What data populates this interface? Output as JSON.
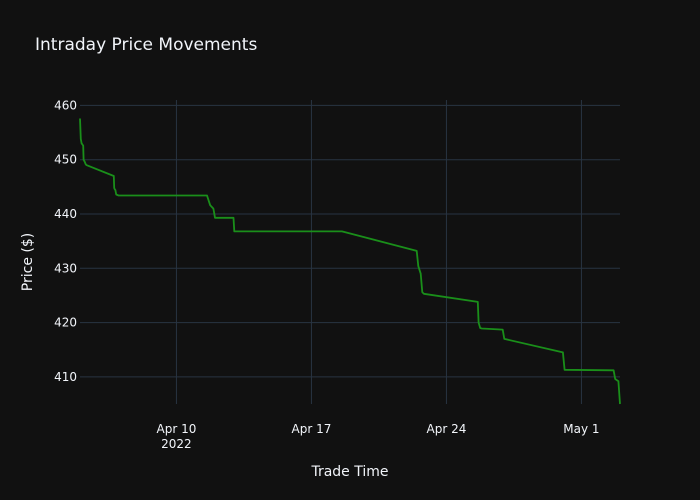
{
  "chart_data": {
    "type": "line",
    "title": "Intraday Price Movements",
    "xlabel": "Trade Time",
    "ylabel": "Price ($)",
    "xlim": [
      "2022-04-05T00:00",
      "2022-05-03T00:00"
    ],
    "ylim": [
      405,
      461
    ],
    "x_ticks": [
      {
        "date": "2022-04-10",
        "label": "Apr 10",
        "sublabel": "2022"
      },
      {
        "date": "2022-04-17",
        "label": "Apr 17",
        "sublabel": ""
      },
      {
        "date": "2022-04-24",
        "label": "Apr 24",
        "sublabel": ""
      },
      {
        "date": "2022-05-01",
        "label": "May 1",
        "sublabel": ""
      }
    ],
    "y_ticks": [
      410,
      420,
      430,
      440,
      450,
      460
    ],
    "grid": true,
    "line_color": "#1a8f1a",
    "series": [
      {
        "name": "",
        "x": [
          "2022-04-05T00:00",
          "2022-04-05T01:00",
          "2022-04-05T02:00",
          "2022-04-05T04:00",
          "2022-04-05T04:30",
          "2022-04-05T06:00",
          "2022-04-05T07:00",
          "2022-04-05T08:00",
          "2022-04-06T18:00",
          "2022-04-06T18:30",
          "2022-04-06T19:00",
          "2022-04-06T20:00",
          "2022-04-06T21:00",
          "2022-04-07T00:00",
          "2022-04-11T14:00",
          "2022-04-11T18:00",
          "2022-04-11T22:00",
          "2022-04-12T00:00",
          "2022-04-12T23:00",
          "2022-04-13T00:00",
          "2022-04-18T14:00",
          "2022-04-22T11:00",
          "2022-04-22T13:00",
          "2022-04-22T16:00",
          "2022-04-22T18:00",
          "2022-04-22T20:00",
          "2022-04-25T15:00",
          "2022-04-25T16:00",
          "2022-04-25T18:00",
          "2022-04-25T20:00",
          "2022-04-26T22:00",
          "2022-04-27T00:00",
          "2022-04-30T01:00",
          "2022-04-30T03:00",
          "2022-05-02T16:00",
          "2022-05-02T18:00",
          "2022-05-02T20:00",
          "2022-05-02T22:00",
          "2022-05-03T00:00"
        ],
        "y": [
          457.6,
          453.8,
          453.0,
          452.6,
          450.0,
          449.6,
          449.2,
          449.0,
          447.0,
          444.8,
          444.6,
          444.4,
          443.6,
          443.4,
          443.4,
          441.6,
          441.0,
          439.3,
          439.3,
          436.8,
          436.8,
          433.2,
          430.4,
          429.0,
          425.6,
          425.3,
          423.8,
          420.0,
          419.0,
          418.9,
          418.7,
          417.0,
          414.5,
          411.3,
          411.2,
          409.6,
          409.4,
          409.2,
          405.0
        ]
      }
    ]
  }
}
